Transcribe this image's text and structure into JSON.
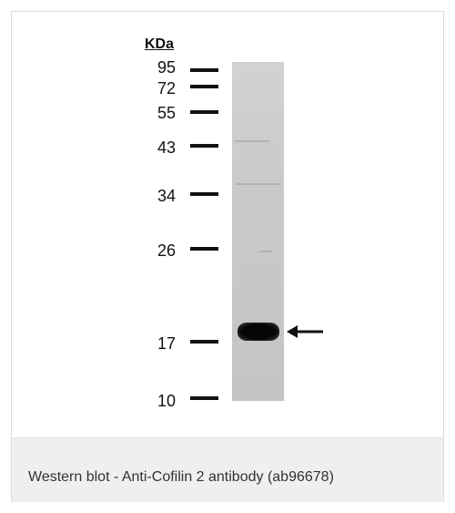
{
  "figure": {
    "unit_label": "KDa",
    "markers": [
      {
        "label": "95",
        "kda": 95
      },
      {
        "label": "72",
        "kda": 72
      },
      {
        "label": "55",
        "kda": 55
      },
      {
        "label": "43",
        "kda": 43
      },
      {
        "label": "34",
        "kda": 34
      },
      {
        "label": "26",
        "kda": 26
      },
      {
        "label": "17",
        "kda": 17
      },
      {
        "label": "10",
        "kda": 10
      }
    ],
    "band_icon": "arrow-left-icon",
    "colors": {
      "lane": "#c8c8c8",
      "band": "#050505",
      "marker": "#111111",
      "caption_bg": "#efefef"
    }
  },
  "caption": {
    "text": "Western blot - Anti-Cofilin 2 antibody (ab96678)"
  }
}
